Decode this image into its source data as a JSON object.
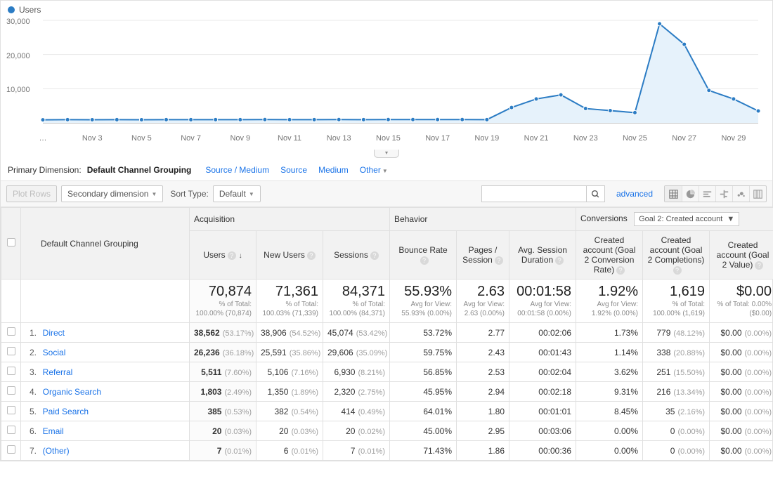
{
  "chart": {
    "legend_label": "Users",
    "type": "line-area",
    "ylim": [
      0,
      30000
    ],
    "ytick_step": 10000,
    "ytick_labels": [
      "10,000",
      "20,000",
      "30,000"
    ],
    "x_first_label": "…",
    "x_labels": [
      "Nov 3",
      "Nov 5",
      "Nov 7",
      "Nov 9",
      "Nov 11",
      "Nov 13",
      "Nov 15",
      "Nov 17",
      "Nov 19",
      "Nov 21",
      "Nov 23",
      "Nov 25",
      "Nov 27",
      "Nov 29"
    ],
    "values": [
      900,
      950,
      920,
      940,
      930,
      950,
      940,
      960,
      950,
      970,
      950,
      960,
      970,
      960,
      980,
      970,
      980,
      970,
      960,
      4500,
      7000,
      8200,
      4200,
      3600,
      3000,
      29000,
      23000,
      9500,
      7000,
      3500
    ],
    "line_color": "#2b7cc4",
    "area_color": "#e6f2fb",
    "marker_color": "#2b7cc4",
    "grid_color": "#e8e8e8",
    "axis_color": "#9e9e9e",
    "background": "#ffffff",
    "marker_radius": 3,
    "line_width": 2
  },
  "primary_dimension": {
    "label": "Primary Dimension:",
    "active": "Default Channel Grouping",
    "tabs": [
      "Source / Medium",
      "Source",
      "Medium",
      "Other"
    ]
  },
  "toolbar": {
    "plot_rows": "Plot Rows",
    "secondary_dimension": "Secondary dimension",
    "sort_type_label": "Sort Type:",
    "sort_type_value": "Default",
    "advanced": "advanced"
  },
  "table": {
    "channel_header": "Default Channel Grouping",
    "groups": {
      "acquisition": "Acquisition",
      "behavior": "Behavior",
      "conversions": "Conversions"
    },
    "conversions_select": "Goal 2: Created account",
    "columns": {
      "users": "Users",
      "new_users": "New Users",
      "sessions": "Sessions",
      "bounce": "Bounce Rate",
      "pages": "Pages / Session",
      "duration": "Avg. Session Duration",
      "conv_rate": "Created account (Goal 2 Conversion Rate)",
      "completions": "Created account (Goal 2 Completions)",
      "value": "Created account (Goal 2 Value)"
    },
    "totals": {
      "users": {
        "big": "70,874",
        "sub": "% of Total: 100.00% (70,874)"
      },
      "new_users": {
        "big": "71,361",
        "sub": "% of Total: 100.03% (71,339)"
      },
      "sessions": {
        "big": "84,371",
        "sub": "% of Total: 100.00% (84,371)"
      },
      "bounce": {
        "big": "55.93%",
        "sub": "Avg for View: 55.93% (0.00%)"
      },
      "pages": {
        "big": "2.63",
        "sub": "Avg for View: 2.63 (0.00%)"
      },
      "duration": {
        "big": "00:01:58",
        "sub": "Avg for View: 00:01:58 (0.00%)"
      },
      "conv_rate": {
        "big": "1.92%",
        "sub": "Avg for View: 1.92% (0.00%)"
      },
      "completions": {
        "big": "1,619",
        "sub": "% of Total: 100.00% (1,619)"
      },
      "value": {
        "big": "$0.00",
        "sub": "% of Total: 0.00% ($0.00)"
      }
    },
    "rows": [
      {
        "n": "1.",
        "channel": "Direct",
        "users": "38,562",
        "users_pct": "(53.17%)",
        "new_users": "38,906",
        "new_users_pct": "(54.52%)",
        "sessions": "45,074",
        "sessions_pct": "(53.42%)",
        "bounce": "53.72%",
        "pages": "2.77",
        "duration": "00:02:06",
        "conv_rate": "1.73%",
        "completions": "779",
        "completions_pct": "(48.12%)",
        "value": "$0.00",
        "value_pct": "(0.00%)"
      },
      {
        "n": "2.",
        "channel": "Social",
        "users": "26,236",
        "users_pct": "(36.18%)",
        "new_users": "25,591",
        "new_users_pct": "(35.86%)",
        "sessions": "29,606",
        "sessions_pct": "(35.09%)",
        "bounce": "59.75%",
        "pages": "2.43",
        "duration": "00:01:43",
        "conv_rate": "1.14%",
        "completions": "338",
        "completions_pct": "(20.88%)",
        "value": "$0.00",
        "value_pct": "(0.00%)"
      },
      {
        "n": "3.",
        "channel": "Referral",
        "users": "5,511",
        "users_pct": "(7.60%)",
        "new_users": "5,106",
        "new_users_pct": "(7.16%)",
        "sessions": "6,930",
        "sessions_pct": "(8.21%)",
        "bounce": "56.85%",
        "pages": "2.53",
        "duration": "00:02:04",
        "conv_rate": "3.62%",
        "completions": "251",
        "completions_pct": "(15.50%)",
        "value": "$0.00",
        "value_pct": "(0.00%)"
      },
      {
        "n": "4.",
        "channel": "Organic Search",
        "users": "1,803",
        "users_pct": "(2.49%)",
        "new_users": "1,350",
        "new_users_pct": "(1.89%)",
        "sessions": "2,320",
        "sessions_pct": "(2.75%)",
        "bounce": "45.95%",
        "pages": "2.94",
        "duration": "00:02:18",
        "conv_rate": "9.31%",
        "completions": "216",
        "completions_pct": "(13.34%)",
        "value": "$0.00",
        "value_pct": "(0.00%)"
      },
      {
        "n": "5.",
        "channel": "Paid Search",
        "users": "385",
        "users_pct": "(0.53%)",
        "new_users": "382",
        "new_users_pct": "(0.54%)",
        "sessions": "414",
        "sessions_pct": "(0.49%)",
        "bounce": "64.01%",
        "pages": "1.80",
        "duration": "00:01:01",
        "conv_rate": "8.45%",
        "completions": "35",
        "completions_pct": "(2.16%)",
        "value": "$0.00",
        "value_pct": "(0.00%)"
      },
      {
        "n": "6.",
        "channel": "Email",
        "users": "20",
        "users_pct": "(0.03%)",
        "new_users": "20",
        "new_users_pct": "(0.03%)",
        "sessions": "20",
        "sessions_pct": "(0.02%)",
        "bounce": "45.00%",
        "pages": "2.95",
        "duration": "00:03:06",
        "conv_rate": "0.00%",
        "completions": "0",
        "completions_pct": "(0.00%)",
        "value": "$0.00",
        "value_pct": "(0.00%)"
      },
      {
        "n": "7.",
        "channel": "(Other)",
        "users": "7",
        "users_pct": "(0.01%)",
        "new_users": "6",
        "new_users_pct": "(0.01%)",
        "sessions": "7",
        "sessions_pct": "(0.01%)",
        "bounce": "71.43%",
        "pages": "1.86",
        "duration": "00:00:36",
        "conv_rate": "0.00%",
        "completions": "0",
        "completions_pct": "(0.00%)",
        "value": "$0.00",
        "value_pct": "(0.00%)"
      }
    ]
  }
}
